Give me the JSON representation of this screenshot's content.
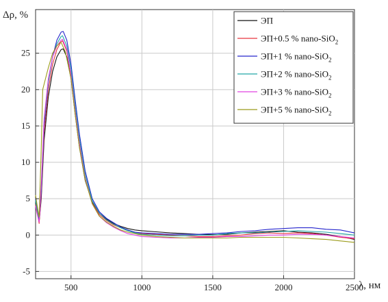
{
  "chart_data": {
    "type": "line",
    "ylabel": "Δρ, %",
    "xlabel": "λ, нм",
    "xlim": [
      250,
      2500
    ],
    "ylim": [
      -6,
      31
    ],
    "xticks": [
      500,
      1000,
      1500,
      2000,
      2500
    ],
    "yticks": [
      -5,
      0,
      5,
      10,
      15,
      20,
      25
    ],
    "grid": true,
    "legend_position": "top-right",
    "series": [
      {
        "name": "ЭП",
        "legend_main": "ЭП",
        "legend_sub": "",
        "color": "#111111",
        "x": [
          250,
          260,
          275,
          290,
          310,
          340,
          370,
          400,
          430,
          445,
          470,
          500,
          530,
          560,
          600,
          650,
          700,
          750,
          800,
          850,
          900,
          950,
          1000,
          1100,
          1200,
          1300,
          1400,
          1500,
          1600,
          1700,
          1800,
          1900,
          2000,
          2100,
          2200,
          2300,
          2400,
          2500
        ],
        "y": [
          4.5,
          3.5,
          1.8,
          5,
          13,
          19,
          22.5,
          24.5,
          25.5,
          25.6,
          24.5,
          21.5,
          16.5,
          12,
          7.5,
          4.5,
          3,
          2.2,
          1.6,
          1.2,
          0.9,
          0.7,
          0.6,
          0.45,
          0.3,
          0.2,
          0.1,
          0.05,
          0.1,
          0.3,
          0.4,
          0.5,
          0.6,
          0.4,
          0.3,
          0.1,
          -0.2,
          -0.6
        ]
      },
      {
        "name": "ЭП+0.5 % nano-SiO2",
        "legend_main": "ЭП+0.5 % nano-SiO",
        "legend_sub": "2",
        "color": "#e8343f",
        "x": [
          250,
          260,
          275,
          290,
          310,
          340,
          370,
          400,
          430,
          440,
          470,
          500,
          530,
          560,
          600,
          650,
          700,
          750,
          800,
          850,
          900,
          950,
          1000,
          1100,
          1200,
          1300,
          1400,
          1500,
          1600,
          1700,
          1800,
          1900,
          2000,
          2100,
          2200,
          2300,
          2400,
          2500
        ],
        "y": [
          4.2,
          3.3,
          1.6,
          5.5,
          14,
          20,
          23.5,
          25.5,
          26.6,
          26.7,
          25.3,
          22,
          17,
          12.5,
          7.8,
          4.4,
          2.8,
          2,
          1.4,
          1,
          0.6,
          0.4,
          0.2,
          0.1,
          0,
          -0.1,
          -0.2,
          -0.2,
          -0.1,
          0,
          0.2,
          0.3,
          0.2,
          0.3,
          0.2,
          0,
          -0.3,
          -0.5
        ]
      },
      {
        "name": "ЭП+1 % nano-SiO2",
        "legend_main": "ЭП+1 % nano-SiO",
        "legend_sub": "2",
        "color": "#2424cc",
        "x": [
          250,
          260,
          275,
          290,
          310,
          340,
          370,
          400,
          430,
          445,
          470,
          500,
          530,
          560,
          600,
          650,
          700,
          750,
          800,
          850,
          900,
          950,
          1000,
          1100,
          1200,
          1300,
          1400,
          1500,
          1600,
          1700,
          1800,
          1900,
          2000,
          2100,
          2200,
          2300,
          2400,
          2500
        ],
        "y": [
          5,
          4,
          2,
          6,
          15,
          21,
          24.5,
          26.8,
          27.9,
          28,
          26.8,
          23.5,
          18.5,
          13.8,
          8.8,
          5,
          3.2,
          2.3,
          1.7,
          1.1,
          0.7,
          0.4,
          0.3,
          0.2,
          0.1,
          0.1,
          0.1,
          0.2,
          0.3,
          0.5,
          0.6,
          0.8,
          0.9,
          1,
          1,
          0.8,
          0.7,
          0.3
        ]
      },
      {
        "name": "ЭП+2 % nano-SiO2",
        "legend_main": "ЭП+2 % nano-SiO",
        "legend_sub": "2",
        "color": "#20a6a6",
        "x": [
          250,
          260,
          275,
          290,
          310,
          340,
          370,
          400,
          430,
          440,
          470,
          500,
          530,
          560,
          600,
          650,
          700,
          750,
          800,
          850,
          900,
          950,
          1000,
          1100,
          1200,
          1300,
          1400,
          1500,
          1600,
          1700,
          1800,
          1900,
          2000,
          2100,
          2200,
          2300,
          2400,
          2500
        ],
        "y": [
          4.8,
          3.6,
          2.3,
          6.5,
          15.5,
          21,
          24.5,
          26.3,
          27.3,
          27.4,
          26,
          22.8,
          17.8,
          13.2,
          8.3,
          4.7,
          3,
          2.1,
          1.5,
          1,
          0.6,
          0.3,
          0.1,
          0,
          -0.1,
          -0.1,
          0,
          0,
          0.2,
          0.3,
          0.3,
          0.4,
          0.5,
          0.6,
          0.5,
          0.4,
          0.2,
          0
        ]
      },
      {
        "name": "ЭП+3 % nano-SiO2",
        "legend_main": "ЭП+3 % nano-SiO",
        "legend_sub": "2",
        "color": "#e040e0",
        "x": [
          250,
          260,
          275,
          290,
          310,
          340,
          370,
          400,
          430,
          440,
          470,
          500,
          530,
          560,
          600,
          650,
          700,
          750,
          800,
          850,
          900,
          950,
          1000,
          1100,
          1200,
          1300,
          1400,
          1500,
          1600,
          1700,
          1800,
          1900,
          2000,
          2100,
          2200,
          2300,
          2400,
          2500
        ],
        "y": [
          4,
          3,
          1.8,
          7,
          16,
          21.5,
          24.5,
          26,
          26.8,
          26.9,
          25.5,
          22,
          17,
          12.5,
          7.8,
          4.3,
          2.6,
          1.7,
          1.1,
          0.6,
          0.2,
          0,
          -0.2,
          -0.3,
          -0.4,
          -0.4,
          -0.3,
          -0.3,
          -0.2,
          -0.2,
          -0.1,
          0,
          0,
          0.1,
          0.1,
          0,
          -0.2,
          -0.4
        ]
      },
      {
        "name": "ЭП+5 % nano-SiO2",
        "legend_main": "ЭП+5 % nano-SiO",
        "legend_sub": "2",
        "color": "#9b9b1a",
        "x": [
          250,
          260,
          275,
          290,
          300,
          320,
          340,
          370,
          400,
          420,
          430,
          460,
          500,
          530,
          560,
          600,
          650,
          700,
          750,
          800,
          850,
          900,
          950,
          1000,
          1100,
          1200,
          1300,
          1400,
          1500,
          1600,
          1700,
          1800,
          1900,
          2000,
          2100,
          2200,
          2300,
          2400,
          2500
        ],
        "y": [
          5.5,
          4.2,
          2.5,
          12,
          20,
          21.5,
          23,
          25,
          26,
          26.4,
          26.5,
          25.2,
          21.5,
          16.5,
          12,
          7.6,
          4.3,
          2.6,
          1.8,
          1.2,
          0.7,
          0.4,
          0.2,
          0,
          -0.2,
          -0.3,
          -0.4,
          -0.4,
          -0.4,
          -0.4,
          -0.3,
          -0.3,
          -0.3,
          -0.3,
          -0.4,
          -0.5,
          -0.6,
          -0.8,
          -1
        ]
      }
    ]
  }
}
